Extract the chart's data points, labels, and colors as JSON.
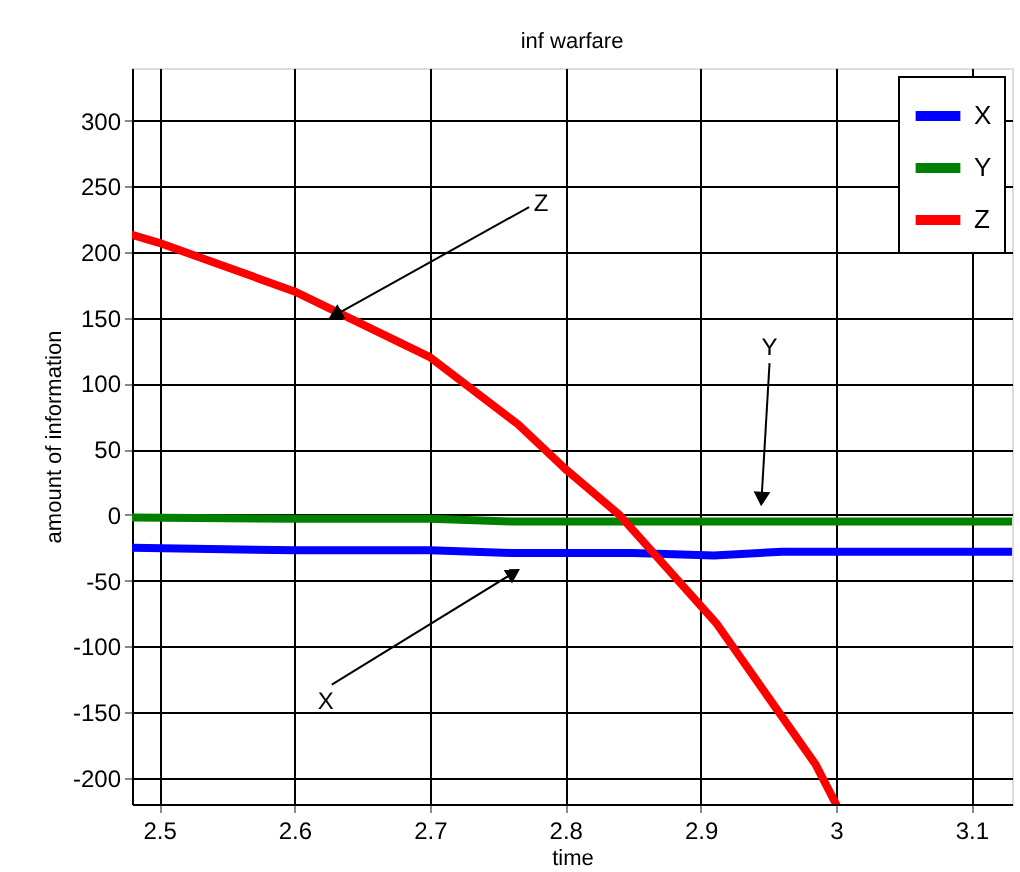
{
  "chart_data": {
    "type": "line",
    "title": "inf warfare",
    "xlabel": "time",
    "ylabel": "amount of information",
    "xlim": [
      2.48,
      3.13
    ],
    "ylim": [
      -220,
      340
    ],
    "xticks": [
      2.5,
      2.6,
      2.7,
      2.8,
      2.9,
      3,
      3.1
    ],
    "yticks": [
      -200,
      -150,
      -100,
      -50,
      0,
      50,
      100,
      150,
      200,
      250,
      300
    ],
    "grid": true,
    "legend": "top right",
    "line_style": "solid",
    "marker": "none",
    "series": [
      {
        "name": "X",
        "color": "#0000ff",
        "x": [
          2.48,
          2.6,
          2.7,
          2.76,
          2.85,
          2.91,
          2.96,
          3.05,
          3.13
        ],
        "values": [
          -25,
          -27,
          -27,
          -29,
          -29,
          -31,
          -28,
          -28,
          -28
        ]
      },
      {
        "name": "Y",
        "color": "#008000",
        "x": [
          2.48,
          2.6,
          2.7,
          2.76,
          2.9,
          3.0,
          3.13
        ],
        "values": [
          -2,
          -3,
          -3,
          -5,
          -5,
          -5,
          -5
        ]
      },
      {
        "name": "Z",
        "color": "#ff0000",
        "x": [
          2.48,
          2.5,
          2.6,
          2.7,
          2.765,
          2.8,
          2.84,
          2.912,
          2.985,
          3.0
        ],
        "values": [
          213,
          207,
          170,
          120,
          69,
          35,
          0,
          -83,
          -190,
          -220
        ]
      }
    ],
    "annotations": [
      {
        "text": "Z",
        "x": 2.63,
        "y": 152
      },
      {
        "text": "Y",
        "x": 2.945,
        "y": 12
      },
      {
        "text": "X",
        "x": 2.762,
        "y": -44
      }
    ]
  }
}
